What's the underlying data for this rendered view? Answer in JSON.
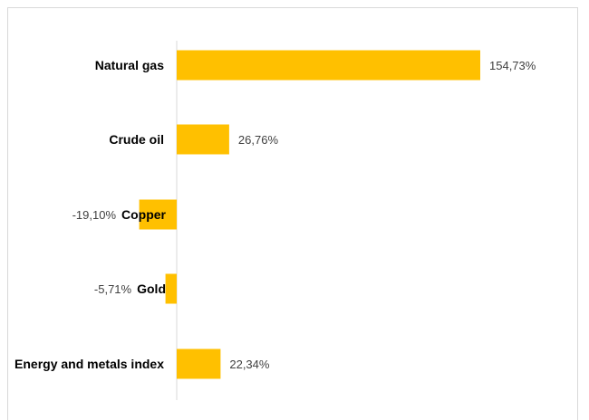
{
  "chart_data": {
    "type": "bar",
    "orientation": "horizontal",
    "title": "",
    "xlabel": "",
    "ylabel": "",
    "categories": [
      "Natural gas",
      "Crude oil",
      "Copper",
      "Gold",
      "Energy and metals index"
    ],
    "values": [
      154.73,
      26.76,
      -19.1,
      -5.71,
      22.34
    ],
    "value_labels": [
      "154,73%",
      "26,76%",
      "-19,10%",
      "-5,71%",
      "22,34%"
    ],
    "xlim": [
      -19.1,
      154.73
    ],
    "grid": false,
    "legend": "none",
    "bar_color": "#FFC000"
  }
}
